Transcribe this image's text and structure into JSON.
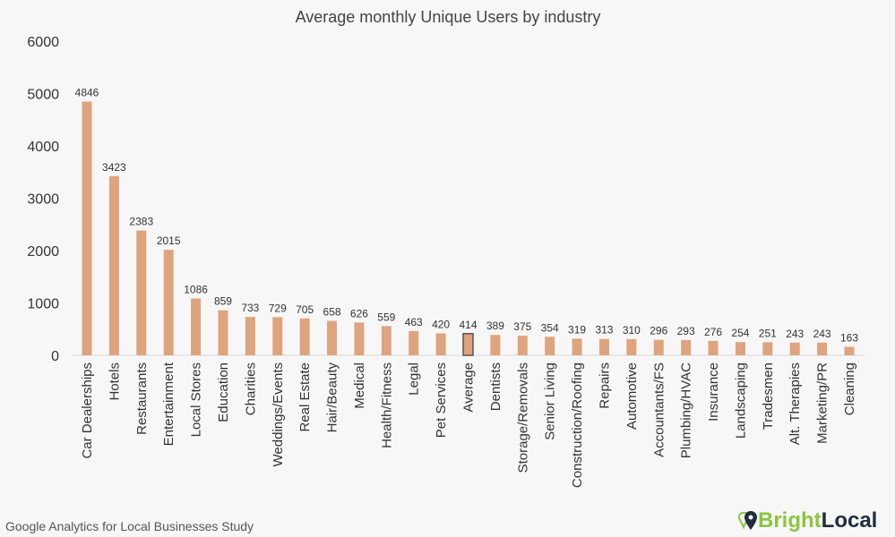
{
  "chart_data": {
    "type": "bar",
    "title": "Average monthly Unique Users by industry",
    "xlabel": "",
    "ylabel": "",
    "ylim": [
      0,
      6000
    ],
    "yticks": [
      0,
      1000,
      2000,
      3000,
      4000,
      5000,
      6000
    ],
    "grid": false,
    "legend": "none",
    "categories": [
      "Car Dealerships",
      "Hotels",
      "Restaurants",
      "Entertainment",
      "Local Stores",
      "Education",
      "Charities",
      "Weddings/Events",
      "Real Estate",
      "Hair/Beauty",
      "Medical",
      "Health/Fitness",
      "Legal",
      "Pet Services",
      "Average",
      "Dentists",
      "Storage/Removals",
      "Senior Living",
      "Construction/Roofing",
      "Repairs",
      "Automotive",
      "Accountants/FS",
      "Plumbing/HVAC",
      "Insurance",
      "Landscaping",
      "Tradesmen",
      "Alt. Therapies",
      "Marketing/PR",
      "Cleaning"
    ],
    "values": [
      4846,
      3423,
      2383,
      2015,
      1086,
      859,
      733,
      729,
      705,
      658,
      626,
      559,
      463,
      420,
      414,
      389,
      375,
      354,
      319,
      313,
      310,
      296,
      293,
      276,
      254,
      251,
      243,
      243,
      163
    ],
    "highlight": "Average",
    "colors": {
      "bar": "#dea47e",
      "highlight_outline": "#555555",
      "text": "#333333"
    }
  },
  "footer": {
    "source": "Google Analytics for Local Businesses Study"
  },
  "logo": {
    "part1": "Bright",
    "part2": "Local",
    "colors": {
      "bright": "#8cc63f",
      "local": "#1f2d3d"
    }
  }
}
